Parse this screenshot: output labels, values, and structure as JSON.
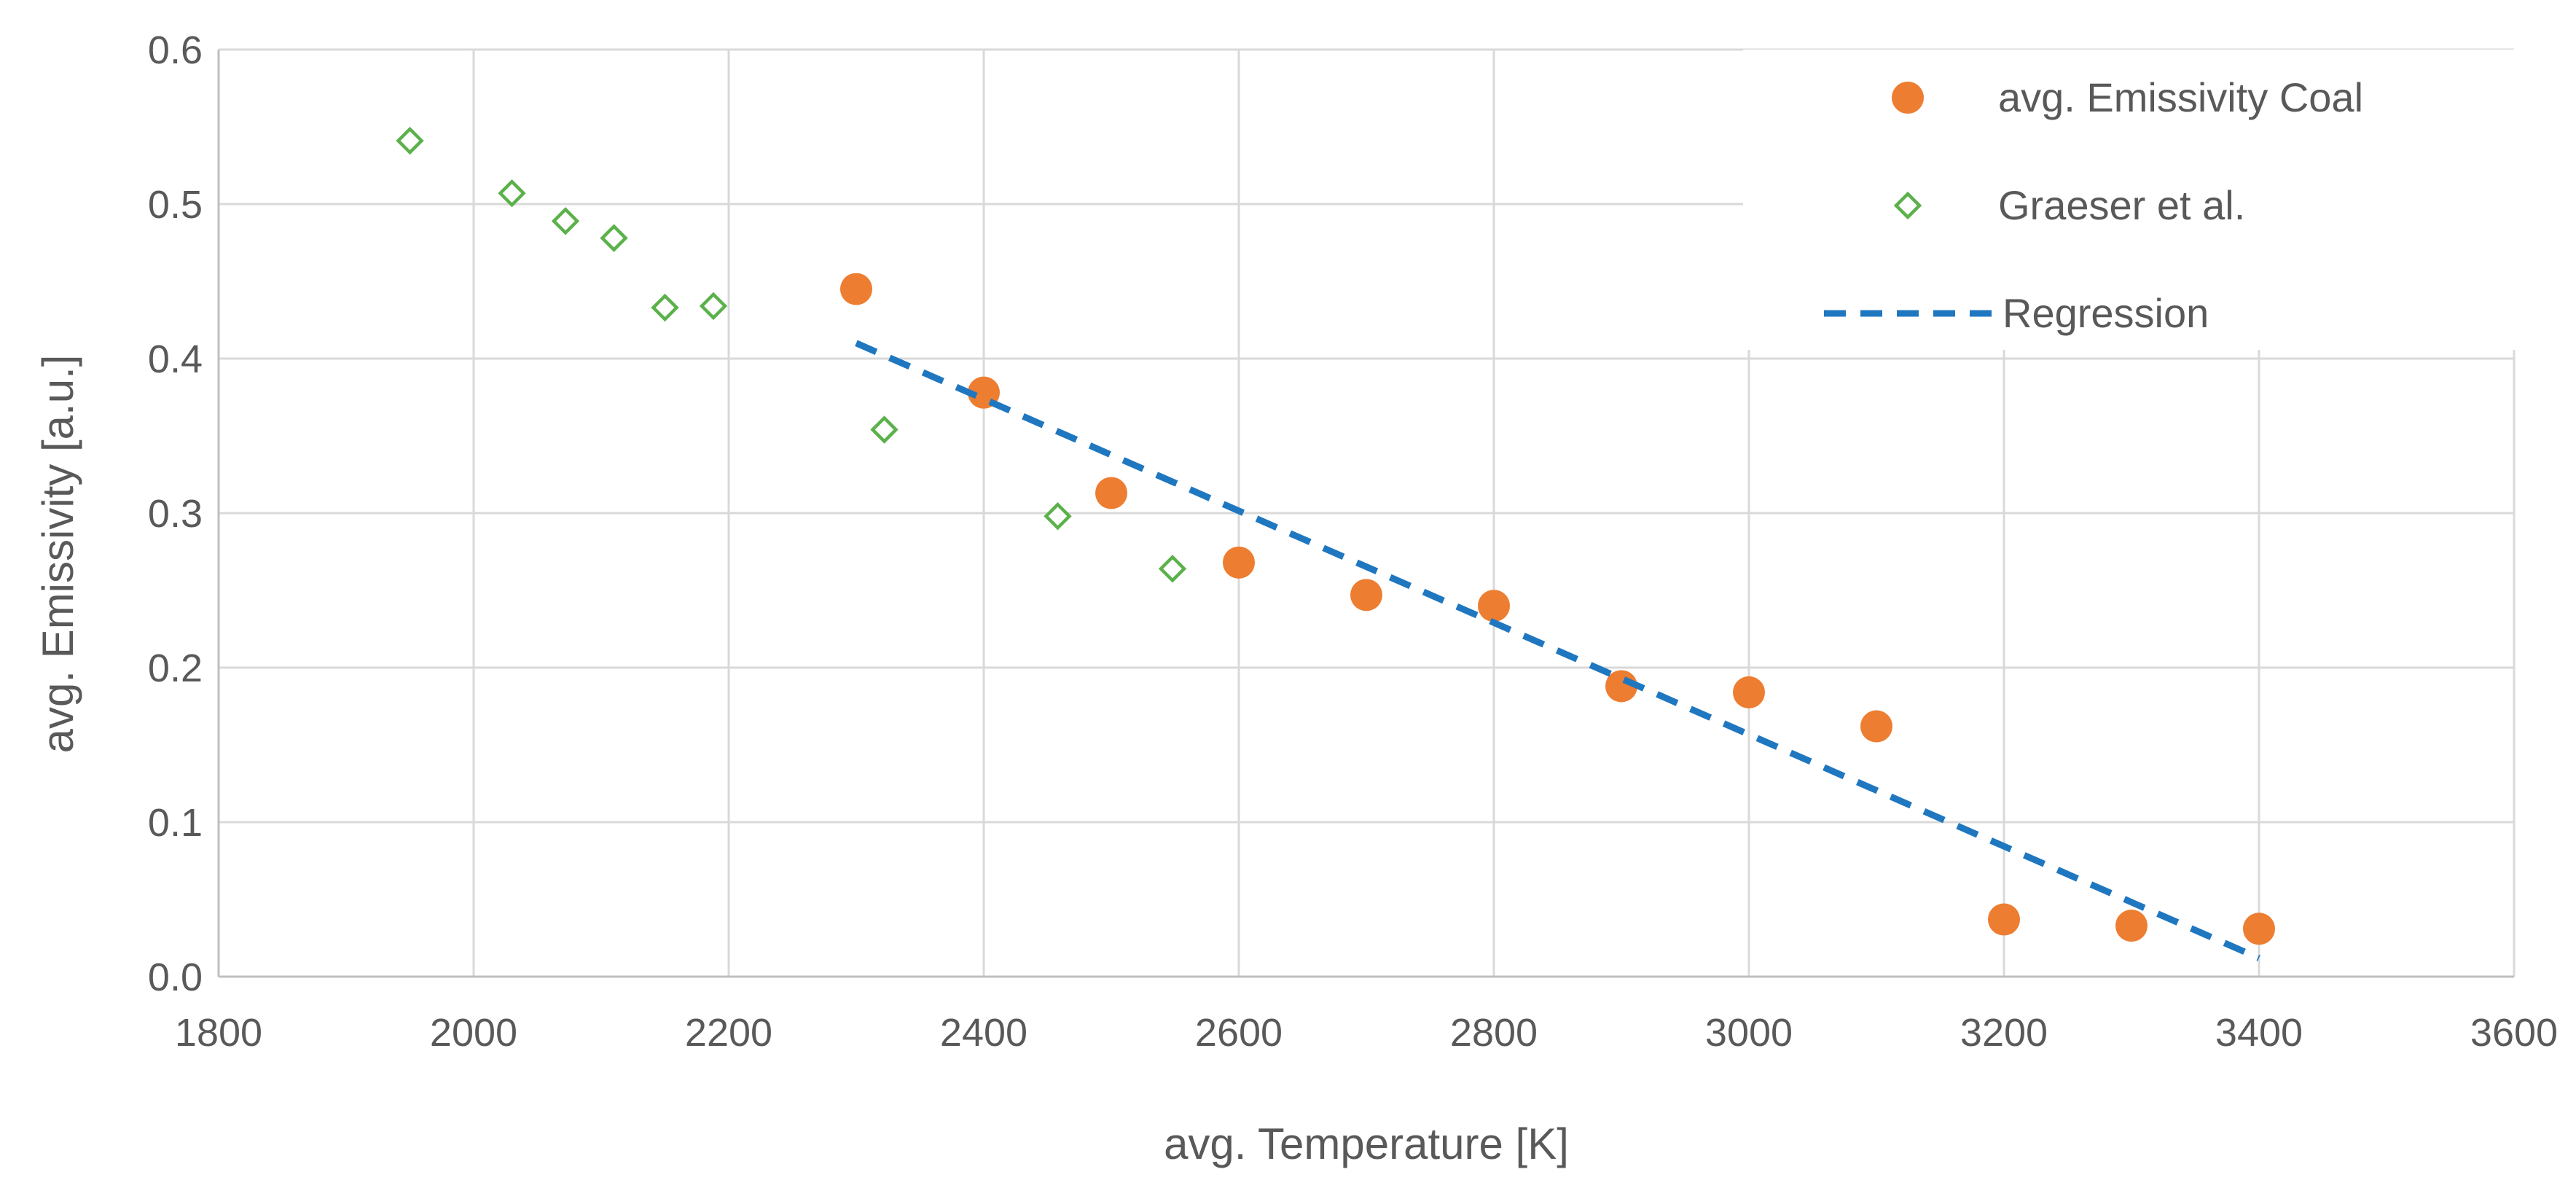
{
  "chart_data": {
    "type": "scatter",
    "title": "",
    "xlabel": "avg. Temperature [K]",
    "ylabel": "avg. Emissivity [a.u.]",
    "xlim": [
      1800,
      3600
    ],
    "ylim": [
      0.0,
      0.6
    ],
    "x_ticks": [
      1800,
      2000,
      2200,
      2400,
      2600,
      2800,
      3000,
      3200,
      3400,
      3600
    ],
    "x_tick_labels": [
      "1800",
      "2000",
      "2200",
      "2400",
      "2600",
      "2800",
      "3000",
      "3200",
      "3400",
      "3600"
    ],
    "y_ticks": [
      0.0,
      0.1,
      0.2,
      0.3,
      0.4,
      0.5,
      0.6
    ],
    "y_tick_labels": [
      "0.0",
      "0.1",
      "0.2",
      "0.3",
      "0.4",
      "0.5",
      "0.6"
    ],
    "grid": true,
    "legend_position": "top-right",
    "series": [
      {
        "name": "avg. Emissivity Coal",
        "marker": "circle",
        "color": "#ED7D31",
        "x": [
          2300,
          2400,
          2500,
          2600,
          2700,
          2800,
          2900,
          3000,
          3100,
          3200,
          3300,
          3400
        ],
        "y": [
          0.445,
          0.378,
          0.313,
          0.268,
          0.247,
          0.24,
          0.188,
          0.184,
          0.162,
          0.037,
          0.033,
          0.031
        ]
      },
      {
        "name": "Graeser et al.",
        "marker": "diamond-open",
        "color": "#5BB14A",
        "x": [
          1950,
          2030,
          2072,
          2110,
          2150,
          2188,
          2322,
          2458,
          2548
        ],
        "y": [
          0.541,
          0.507,
          0.489,
          0.478,
          0.433,
          0.434,
          0.354,
          0.298,
          0.264
        ]
      },
      {
        "name": "Regression",
        "marker": "dashed-line",
        "color": "#1F77C0",
        "x": [
          2300,
          3400
        ],
        "y": [
          0.41,
          0.012
        ]
      }
    ]
  }
}
